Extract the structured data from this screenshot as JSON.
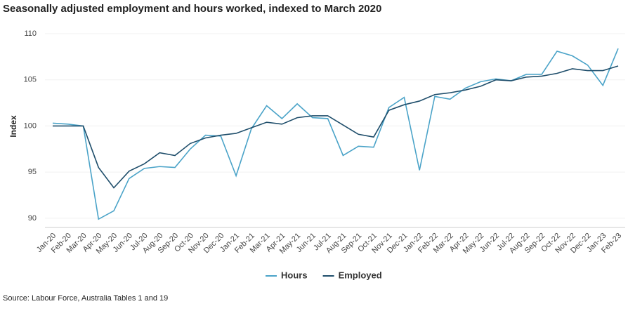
{
  "chart_data": {
    "type": "line",
    "title": "Seasonally adjusted employment and hours worked, indexed to March 2020",
    "y_label": "Index",
    "source": "Source: Labour Force, Australia Tables 1 and 19",
    "categories": [
      "Jan-20",
      "Feb-20",
      "Mar-20",
      "Apr-20",
      "May-20",
      "Jun-20",
      "Jul-20",
      "Aug-20",
      "Sep-20",
      "Oct-20",
      "Nov-20",
      "Dec-20",
      "Jan-21",
      "Feb-21",
      "Mar-21",
      "Apr-21",
      "May-21",
      "Jun-21",
      "Jul-21",
      "Aug-21",
      "Sep-21",
      "Oct-21",
      "Nov-21",
      "Dec-21",
      "Jan-22",
      "Feb-22",
      "Mar-22",
      "Apr-22",
      "May-22",
      "Jun-22",
      "Jul-22",
      "Aug-22",
      "Sep-22",
      "Oct-22",
      "Nov-22",
      "Dec-22",
      "Jan-23",
      "Feb-23"
    ],
    "series": [
      {
        "name": "Hours",
        "color": "#4aa3c8",
        "values": [
          100.3,
          100.2,
          100.0,
          89.9,
          90.8,
          94.3,
          95.4,
          95.6,
          95.5,
          97.5,
          99.0,
          98.9,
          94.6,
          99.7,
          102.2,
          100.8,
          102.4,
          100.9,
          100.8,
          96.8,
          97.8,
          97.7,
          102.0,
          103.1,
          95.2,
          103.2,
          102.9,
          104.1,
          104.8,
          105.1,
          104.9,
          105.6,
          105.6,
          108.1,
          107.6,
          106.6,
          104.4,
          108.4
        ]
      },
      {
        "name": "Employed",
        "color": "#1f4e6b",
        "values": [
          100.0,
          100.0,
          100.0,
          95.5,
          93.3,
          95.1,
          95.9,
          97.1,
          96.8,
          98.1,
          98.7,
          99.0,
          99.2,
          99.8,
          100.4,
          100.2,
          100.9,
          101.1,
          101.1,
          100.1,
          99.1,
          98.8,
          101.7,
          102.3,
          102.7,
          103.4,
          103.6,
          103.9,
          104.3,
          105.0,
          104.9,
          105.3,
          105.4,
          105.7,
          106.2,
          106.0,
          106.0,
          106.5
        ]
      }
    ],
    "ylim": [
      89,
      110
    ],
    "yticks": [
      90,
      95,
      100,
      105,
      110
    ],
    "grid": true
  }
}
